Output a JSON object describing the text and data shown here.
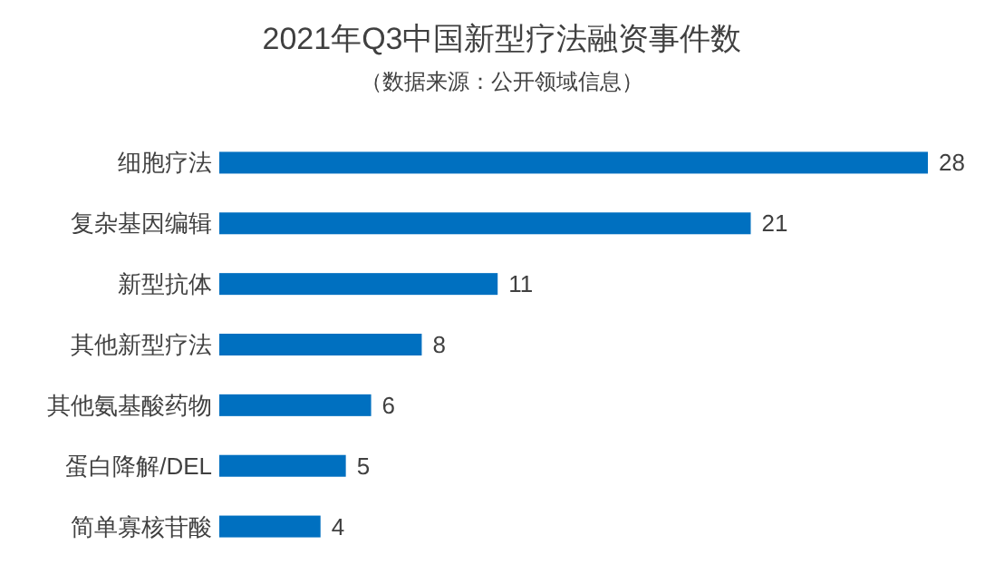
{
  "chart_data": {
    "type": "bar",
    "orientation": "horizontal",
    "title": "2021年Q3中国新型疗法融资事件数",
    "subtitle": "（数据来源：公开领域信息）",
    "categories": [
      "细胞疗法",
      "复杂基因编辑",
      "新型抗体",
      "其他新型疗法",
      "其他氨基酸药物",
      "蛋白降解/DEL",
      "简单寡核苷酸"
    ],
    "values": [
      28,
      21,
      11,
      8,
      6,
      5,
      4
    ],
    "color": "#0070c0",
    "data_labels": true
  }
}
